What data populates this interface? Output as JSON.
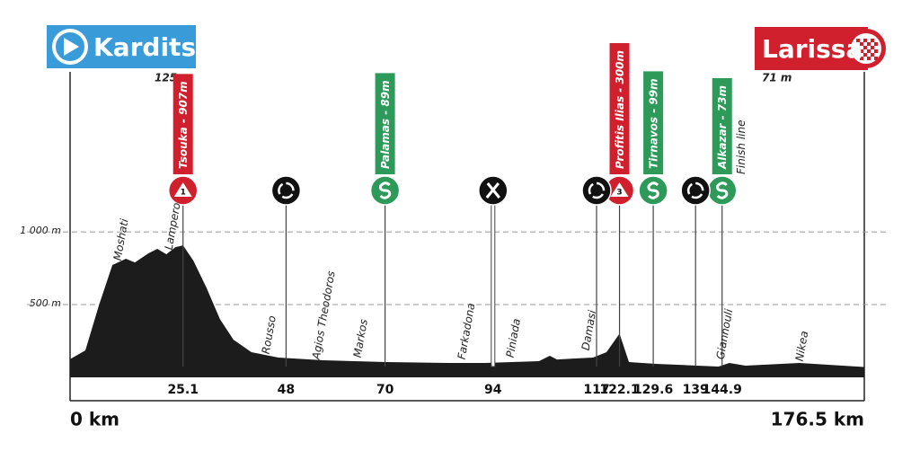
{
  "chart_data": {
    "type": "area",
    "start": {
      "name": "Karditsa",
      "elevation": "125 m"
    },
    "finish": {
      "name": "Larissa",
      "elevation": "71 m"
    },
    "x": [
      0,
      3.4,
      6.4,
      9.4,
      12.4,
      14.4,
      17.4,
      19.4,
      21.4,
      23.4,
      25.1,
      27.4,
      30.3,
      33.3,
      36.3,
      40.3,
      46.3,
      56.3,
      70.3,
      84.2,
      92.2,
      104.2,
      106.6,
      108.2,
      116.2,
      119.2,
      122.1,
      124.2,
      130.2,
      144.1,
      146.5,
      150.1,
      162.1,
      176.5
    ],
    "values": [
      125,
      185,
      494,
      772,
      815,
      790,
      852,
      883,
      846,
      895,
      907,
      802,
      617,
      401,
      259,
      173,
      136,
      117,
      105,
      99,
      99,
      111,
      148,
      123,
      136,
      173,
      300,
      105,
      93,
      74,
      99,
      80,
      99,
      71
    ],
    "color": "#1c1c1c",
    "xlim": [
      0,
      176.5
    ],
    "ylim": [
      0,
      2100
    ],
    "xticks": [
      {
        "value": 0,
        "label": "0 km"
      },
      25.1,
      48,
      70,
      94,
      117,
      122.1,
      129.6,
      139,
      144.9,
      {
        "value": 176.5,
        "label": "176.5 km"
      }
    ],
    "yticks": [
      {
        "value": 1000,
        "label": "1 000 m"
      },
      {
        "value": 500,
        "label": "500 m"
      }
    ],
    "grid": true,
    "climbs": [
      {
        "name": "Tsouka - 907m",
        "category": 1,
        "km": 25.1
      },
      {
        "name": "Profitis Ilias - 300m",
        "category": 3,
        "km": 122.1
      }
    ],
    "sprints": [
      {
        "name": "Palamas - 89m",
        "km": 70
      },
      {
        "name": "Tirnavos - 99m",
        "km": 129.6
      },
      {
        "name": "Alkazar - 73m",
        "km": 144.9,
        "note": "Finish line"
      }
    ],
    "waste_zones": [
      48,
      117,
      139
    ],
    "feed_zones": [
      94
    ],
    "places": [
      "Moshati",
      "Lampero",
      "Rousso",
      "Agios Theodoros",
      "Markos",
      "Farkadona",
      "Piniada",
      "Damasi",
      "Giannouli",
      "Nikea"
    ]
  }
}
